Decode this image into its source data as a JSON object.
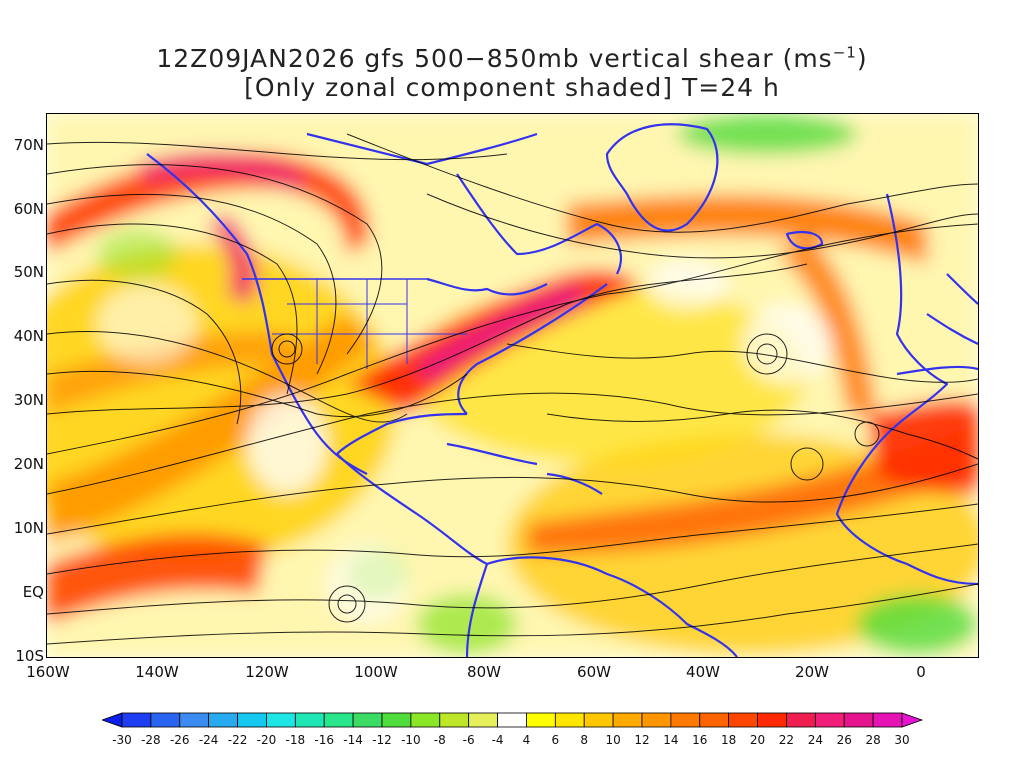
{
  "title": {
    "line1_prefix": "12Z09JAN2026 gfs 500−850mb vertical shear (ms",
    "line1_sup": "−1",
    "line1_suffix": ")",
    "line2": "[Only zonal component shaded] T=24 h"
  },
  "map": {
    "lon_range": [
      -160,
      10
    ],
    "lat_range": [
      -10,
      75
    ],
    "lat_labels": [
      "70N",
      "60N",
      "50N",
      "40N",
      "30N",
      "20N",
      "10N",
      "EQ",
      "10S"
    ],
    "lat_values": [
      70,
      60,
      50,
      40,
      30,
      20,
      10,
      0,
      -10
    ],
    "lon_labels": [
      "160W",
      "140W",
      "120W",
      "100W",
      "80W",
      "60W",
      "40W",
      "20W",
      "0"
    ],
    "lon_values": [
      -160,
      -140,
      -120,
      -100,
      -80,
      -60,
      -40,
      -20,
      0
    ],
    "coastline_color": "#3333ee",
    "streamline_color": "#000000"
  },
  "colorbar": {
    "tick_labels": [
      "-30",
      "-28",
      "-26",
      "-24",
      "-22",
      "-20",
      "-18",
      "-16",
      "-14",
      "-12",
      "-10",
      "-8",
      "-6",
      "-4",
      "4",
      "6",
      "8",
      "10",
      "12",
      "14",
      "16",
      "18",
      "20",
      "22",
      "24",
      "26",
      "28",
      "30"
    ],
    "colors": [
      "#0a1ee6",
      "#1e3cf0",
      "#2864f0",
      "#3c8cf0",
      "#28aaf0",
      "#14c8f0",
      "#1ee6e6",
      "#1ee6b4",
      "#28e68c",
      "#3cdc64",
      "#50dc3c",
      "#8ce628",
      "#bee628",
      "#e6f05a",
      "#ffffff",
      "#ffff00",
      "#ffe600",
      "#ffc800",
      "#ffaa00",
      "#ff9600",
      "#ff7800",
      "#ff6400",
      "#ff4600",
      "#ff2800",
      "#f01e50",
      "#f01e78",
      "#e6148c",
      "#e614b4",
      "#e614d2"
    ]
  }
}
